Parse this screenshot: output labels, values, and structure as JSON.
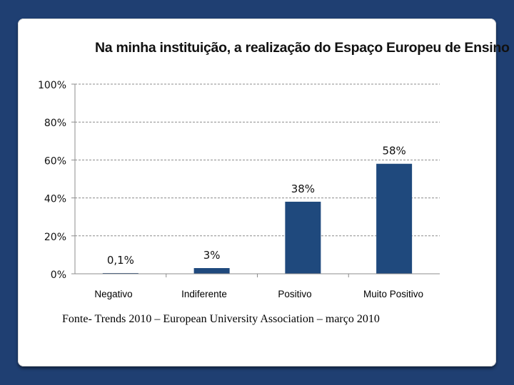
{
  "colors": {
    "background": "#1f3f72",
    "bar": "#1f497d",
    "grid": "#8c8c8c",
    "text": "#111111"
  },
  "chart_data": {
    "type": "bar",
    "title": "Na minha instituição, a realização do Espaço Europeu de Ensino",
    "categories": [
      "Negativo",
      "Indiferente",
      "Positivo",
      "Muito Positivo"
    ],
    "values": [
      0.1,
      3,
      38,
      58
    ],
    "data_labels": [
      "0,1%",
      "3%",
      "38%",
      "58%"
    ],
    "yticks": [
      0,
      20,
      40,
      60,
      80,
      100
    ],
    "ytick_labels": [
      "0%",
      "20%",
      "40%",
      "60%",
      "80%",
      "100%"
    ],
    "ylim": [
      0,
      100
    ],
    "xlabel": "",
    "ylabel": "",
    "grid": true,
    "grid_style": "dashed"
  },
  "source_text": "Fonte- Trends 2010 – European University Association – março 2010"
}
